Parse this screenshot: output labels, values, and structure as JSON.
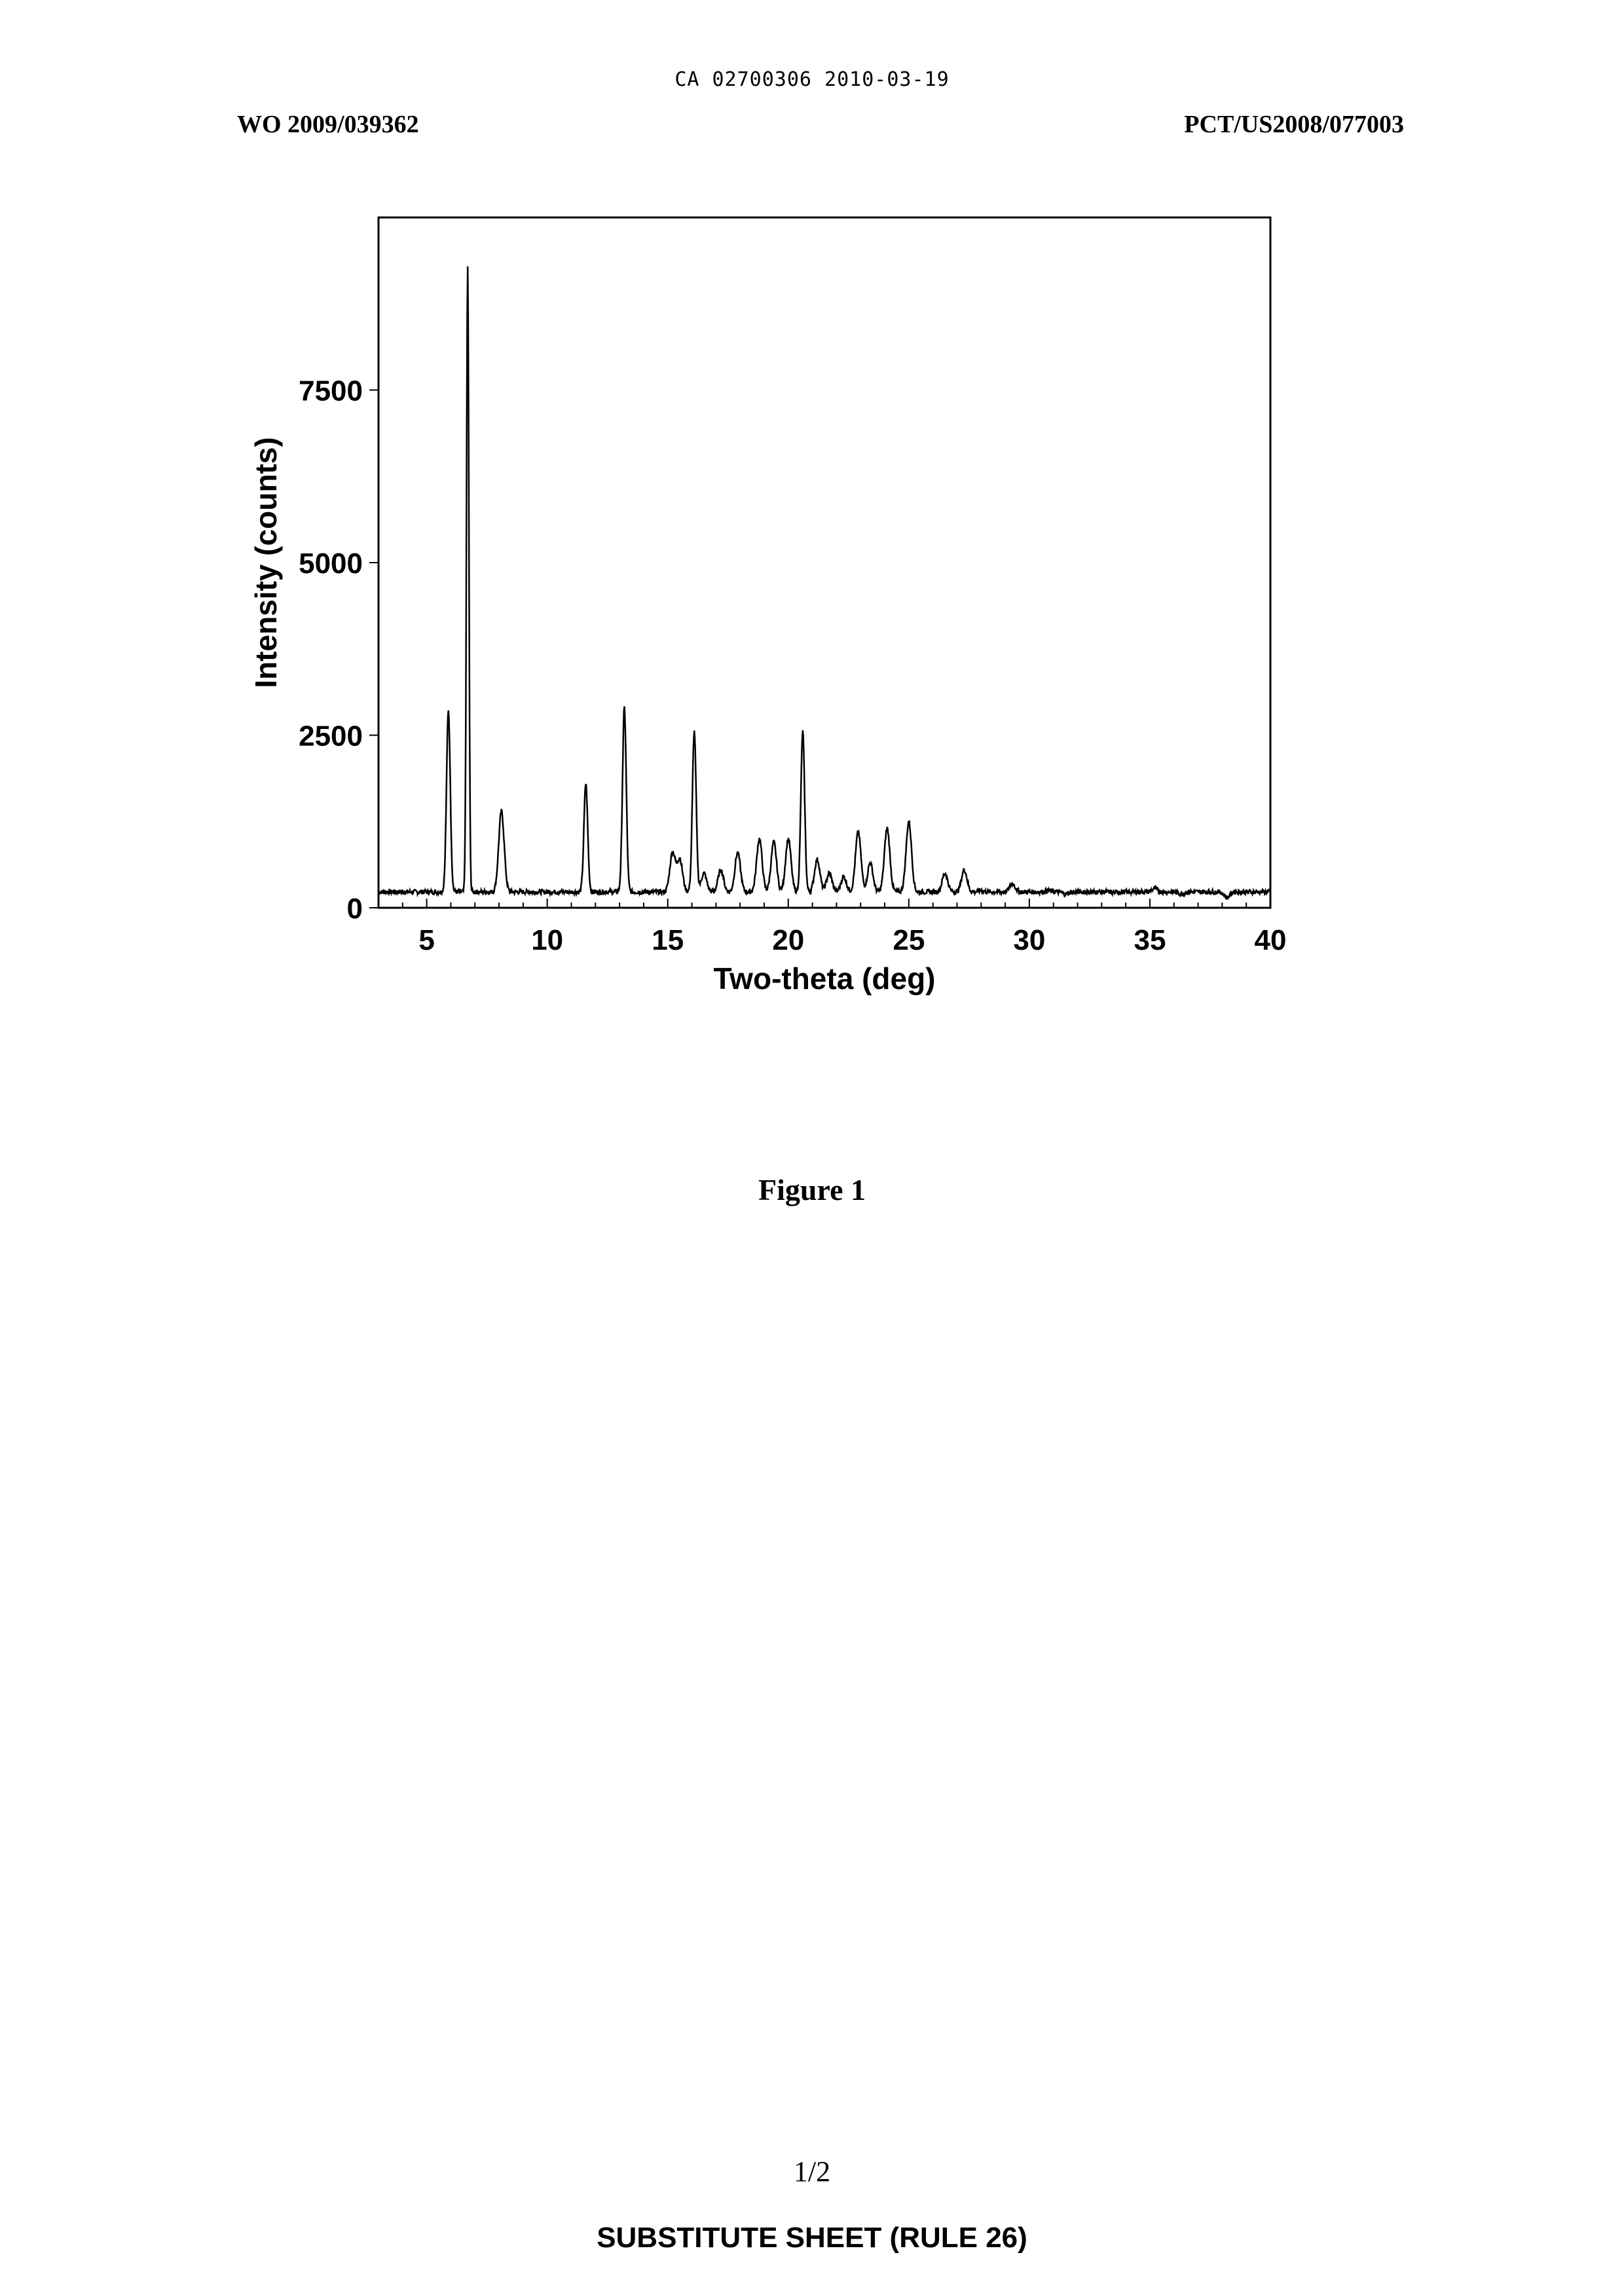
{
  "header": {
    "doc_id": "CA 02700306 2010-03-19",
    "publication": "WO 2009/039362",
    "application": "PCT/US2008/077003"
  },
  "figure_caption": "Figure 1",
  "page_number": "1/2",
  "footer": "SUBSTITUTE SHEET (RULE 26)",
  "chart_data": {
    "type": "line",
    "xlabel": "Two-theta (deg)",
    "ylabel": "Intensity (counts)",
    "xlim": [
      3,
      40
    ],
    "ylim": [
      0,
      10000
    ],
    "xticks": [
      5,
      10,
      15,
      20,
      25,
      30,
      35,
      40
    ],
    "yticks": [
      0,
      2500,
      5000,
      7500
    ],
    "grid": false,
    "baseline": 230,
    "series": [
      {
        "peaks": [
          {
            "x": 5.9,
            "y": 2850
          },
          {
            "x": 6.7,
            "y": 9300
          },
          {
            "x": 8.1,
            "y": 1400
          },
          {
            "x": 11.6,
            "y": 1800
          },
          {
            "x": 13.2,
            "y": 2900
          },
          {
            "x": 15.2,
            "y": 800
          },
          {
            "x": 15.5,
            "y": 700
          },
          {
            "x": 16.1,
            "y": 2550
          },
          {
            "x": 16.5,
            "y": 500
          },
          {
            "x": 17.2,
            "y": 550
          },
          {
            "x": 17.9,
            "y": 800
          },
          {
            "x": 18.8,
            "y": 1000
          },
          {
            "x": 19.4,
            "y": 950
          },
          {
            "x": 20.0,
            "y": 1000
          },
          {
            "x": 20.6,
            "y": 2550
          },
          {
            "x": 21.2,
            "y": 700
          },
          {
            "x": 21.7,
            "y": 500
          },
          {
            "x": 22.3,
            "y": 450
          },
          {
            "x": 22.9,
            "y": 1100
          },
          {
            "x": 23.4,
            "y": 650
          },
          {
            "x": 24.1,
            "y": 1150
          },
          {
            "x": 25.0,
            "y": 1250
          },
          {
            "x": 26.5,
            "y": 500
          },
          {
            "x": 27.3,
            "y": 550
          },
          {
            "x": 28.0,
            "y": 250
          },
          {
            "x": 29.3,
            "y": 350
          },
          {
            "x": 30.8,
            "y": 250
          },
          {
            "x": 31.5,
            "y": 200
          },
          {
            "x": 33.5,
            "y": 220
          },
          {
            "x": 35.2,
            "y": 280
          },
          {
            "x": 36.3,
            "y": 200
          },
          {
            "x": 38.2,
            "y": 150
          }
        ]
      }
    ]
  }
}
